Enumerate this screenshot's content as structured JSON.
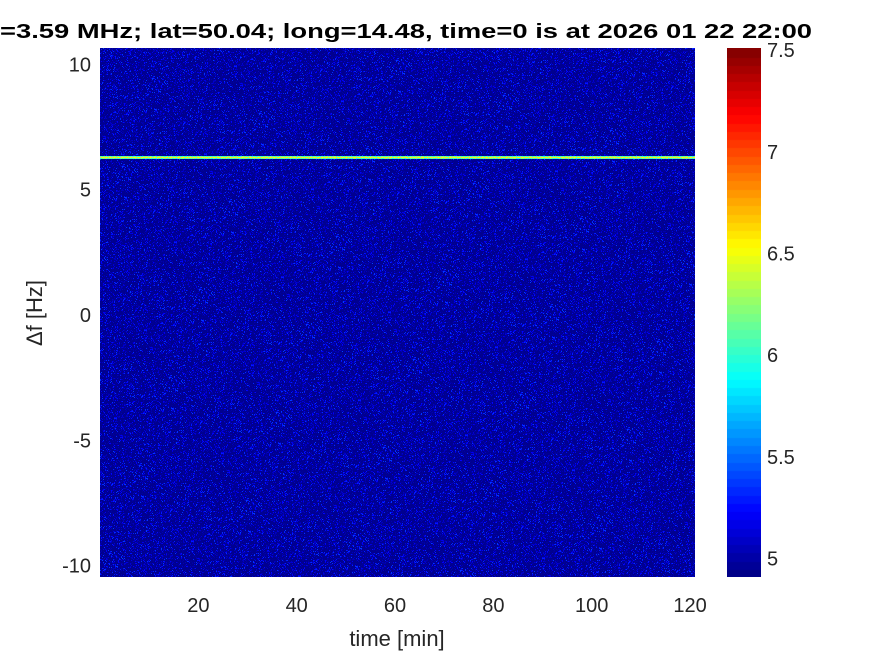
{
  "chart_data": {
    "type": "heatmap",
    "title": "=3.59 MHz;  lat=50.04; long=14.48, time=0 is at 2026 01 22 22:00",
    "xlabel": "time [min]",
    "ylabel": "Δf [Hz]",
    "xlim": [
      0,
      121
    ],
    "ylim": [
      -10.45,
      10.65
    ],
    "xticks": [
      20,
      40,
      60,
      80,
      100,
      120
    ],
    "xtick_labels": [
      "20",
      "40",
      "60",
      "80",
      "100",
      "120"
    ],
    "yticks": [
      10,
      5,
      0,
      -5,
      -10
    ],
    "ytick_labels": [
      "10",
      "5",
      "0",
      "-5",
      "-10"
    ],
    "colormap": "jet",
    "clim": [
      4.91,
      7.51
    ],
    "colorbar": {
      "ticks": [
        7.5,
        7,
        6.5,
        6,
        5.5,
        5
      ],
      "tick_labels": [
        "7.5",
        "7",
        "6.5",
        "6",
        "5.5",
        "5"
      ],
      "location": "right"
    },
    "background_level": 4.95,
    "noise_description_level_max": 5.4,
    "signal_lines": [
      {
        "delta_f_hz": 6.3,
        "level": 6.55,
        "time_range_min": [
          0,
          121
        ]
      }
    ],
    "grid": false
  }
}
